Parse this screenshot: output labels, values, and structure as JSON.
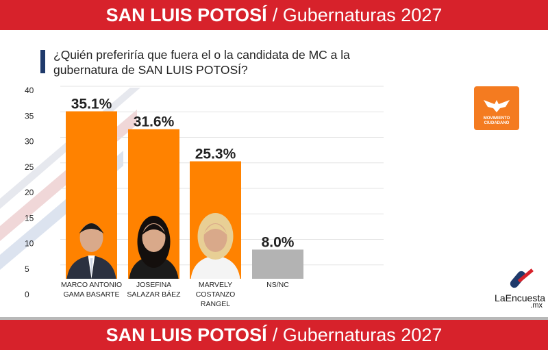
{
  "header": {
    "title_bold": "SAN LUIS POTOSÍ",
    "title_rest": "/ Gubernaturas 2027"
  },
  "question": "¿Quién preferiría que fuera el o la candidata de MC a la gubernatura de SAN LUIS POTOSÍ?",
  "logos": {
    "party_line1": "MOVIMIENTO",
    "party_line2": "CIUDADANO",
    "brand_name": "LaEncuesta",
    "brand_tld": ".mx"
  },
  "chart_data": {
    "type": "bar",
    "title": "",
    "xlabel": "",
    "ylabel": "",
    "ylim": [
      0,
      40
    ],
    "yticks": [
      0,
      5,
      10,
      15,
      20,
      25,
      30,
      35,
      40
    ],
    "grid": true,
    "legend": "none",
    "categories": [
      [
        "MARCO ANTONIO",
        "GAMA BASARTE"
      ],
      [
        "JOSEFINA",
        "SALAZAR BÁEZ"
      ],
      [
        "MARVELY",
        "COSTANZO",
        "RANGEL"
      ],
      [
        "NS/NC"
      ]
    ],
    "values": [
      35.1,
      31.6,
      25.3,
      8.0
    ],
    "value_labels": [
      "35.1%",
      "31.6%",
      "25.3%",
      "8.0%"
    ],
    "colors": [
      "#ff8200",
      "#ff8200",
      "#ff8200",
      "#b3b3b3"
    ]
  }
}
